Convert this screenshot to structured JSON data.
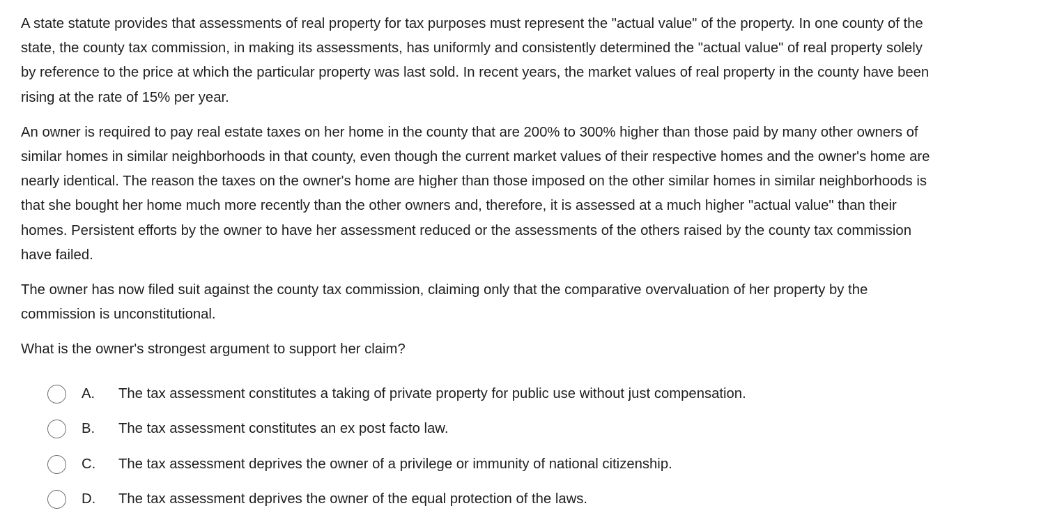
{
  "question": {
    "paragraphs": [
      "A state statute provides that assessments of real property for tax purposes must represent the \"actual value\" of the property.  In one county of the\nstate, the county tax commission, in making its assessments, has uniformly and consistently determined the \"actual value\" of real property solely\nby reference to the price at which the particular property was last sold.  In recent years, the market values of real property in the county have been\nrising at the rate of 15% per year.",
      "An owner is required to pay real estate taxes on her home in the county that are 200% to 300% higher than those paid by many other owners of\nsimilar homes in similar neighborhoods in that county, even though the current market values of their respective homes and the owner's home are\nnearly identical.  The reason the taxes on the owner's home are higher than those imposed on the other similar homes in similar neighborhoods is\nthat she bought her home much more recently than the other owners and, therefore, it is assessed at a much higher \"actual value\" than their\nhomes.  Persistent efforts by the owner to have her assessment reduced or the assessments of the others raised by the county tax commission\nhave failed.",
      "The owner has now filed suit against the county tax commission, claiming only that the comparative overvaluation of her property by the\ncommission is unconstitutional."
    ],
    "prompt": "What is the owner's strongest argument to support her claim?"
  },
  "choices": [
    {
      "letter": "A.",
      "text": "The tax assessment constitutes a taking of private property for public use without just compensation.",
      "selected": false
    },
    {
      "letter": "B.",
      "text": "The tax assessment constitutes an ex post facto law.",
      "selected": false
    },
    {
      "letter": "C.",
      "text": "The tax assessment deprives the owner of a privilege or immunity of national citizenship.",
      "selected": false
    },
    {
      "letter": "D.",
      "text": "The tax assessment deprives the owner of the equal protection of the laws.",
      "selected": false
    }
  ],
  "colors": {
    "text": "#1f1f1f",
    "radio_border": "#6b6b6b",
    "background": "#ffffff"
  }
}
